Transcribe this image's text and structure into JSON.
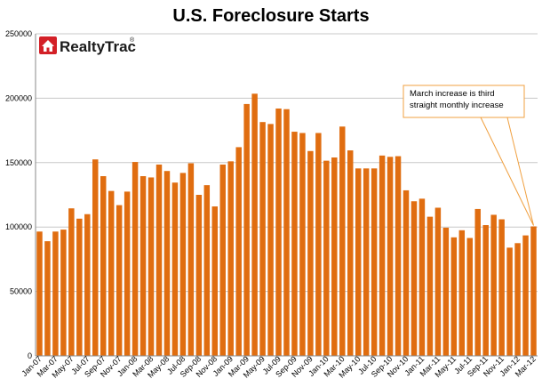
{
  "chart_data": {
    "type": "bar",
    "title": "U.S. Foreclosure Starts",
    "xlabel": "",
    "ylabel": "",
    "ylim": [
      0,
      250000
    ],
    "yticks": [
      0,
      50000,
      100000,
      150000,
      200000,
      250000
    ],
    "ytick_labels": [
      "0",
      "50000",
      "100000",
      "150000",
      "200000",
      "250000"
    ],
    "grid": true,
    "bar_color": "#E06D10",
    "categories": [
      "Jan-07",
      "Feb-07",
      "Mar-07",
      "Apr-07",
      "May-07",
      "Jun-07",
      "Jul-07",
      "Aug-07",
      "Sep-07",
      "Oct-07",
      "Nov-07",
      "Dec-07",
      "Jan-08",
      "Feb-08",
      "Mar-08",
      "Apr-08",
      "May-08",
      "Jun-08",
      "Jul-08",
      "Aug-08",
      "Sep-08",
      "Oct-08",
      "Nov-08",
      "Dec-08",
      "Jan-09",
      "Feb-09",
      "Mar-09",
      "Apr-09",
      "May-09",
      "Jun-09",
      "Jul-09",
      "Aug-09",
      "Sep-09",
      "Oct-09",
      "Nov-09",
      "Dec-09",
      "Jan-10",
      "Feb-10",
      "Mar-10",
      "Apr-10",
      "May-10",
      "Jun-10",
      "Jul-10",
      "Aug-10",
      "Sep-10",
      "Oct-10",
      "Nov-10",
      "Dec-10",
      "Jan-11",
      "Feb-11",
      "Mar-11",
      "Apr-11",
      "May-11",
      "Jun-11",
      "Jul-11",
      "Aug-11",
      "Sep-11",
      "Oct-11",
      "Nov-11",
      "Dec-11",
      "Jan-12",
      "Feb-12",
      "Mar-12"
    ],
    "x_tick_labels": [
      "Jan-07",
      "Mar-07",
      "May-07",
      "Jul-07",
      "Sep-07",
      "Nov-07",
      "Jan-08",
      "Mar-08",
      "May-08",
      "Jul-08",
      "Sep-08",
      "Nov-08",
      "Jan-09",
      "Mar-09",
      "May-09",
      "Jul-09",
      "Sep-09",
      "Nov-09",
      "Jan-10",
      "Mar-10",
      "May-10",
      "Jul-10",
      "Sep-10",
      "Nov-10",
      "Jan-11",
      "Mar-11",
      "May-11",
      "Jul-11",
      "Sep-11",
      "Nov-11",
      "Jan-12",
      "Mar-12"
    ],
    "values": [
      96500,
      89000,
      96500,
      98000,
      114500,
      106500,
      110000,
      152500,
      139500,
      128000,
      117000,
      127500,
      150500,
      139500,
      138500,
      148500,
      143500,
      134500,
      142000,
      149500,
      125000,
      132500,
      116000,
      148500,
      151000,
      162000,
      195500,
      203500,
      181500,
      180000,
      192000,
      191500,
      174000,
      173000,
      159000,
      173000,
      151500,
      154000,
      178000,
      159500,
      145500,
      145500,
      145500,
      155500,
      154500,
      155000,
      128500,
      120000,
      122000,
      108000,
      115000,
      99500,
      92000,
      97500,
      91500,
      114000,
      101500,
      109500,
      106000,
      84000,
      87500,
      93500,
      100500
    ],
    "annotation": {
      "lines": [
        "March increase is third",
        "straight monthly increase"
      ],
      "target_category": "Mar-12",
      "border_color": "#F0A040"
    }
  },
  "logo": {
    "text": "RealtyTrac",
    "mark": "®",
    "icon": "house-icon",
    "color": "#D32027"
  }
}
